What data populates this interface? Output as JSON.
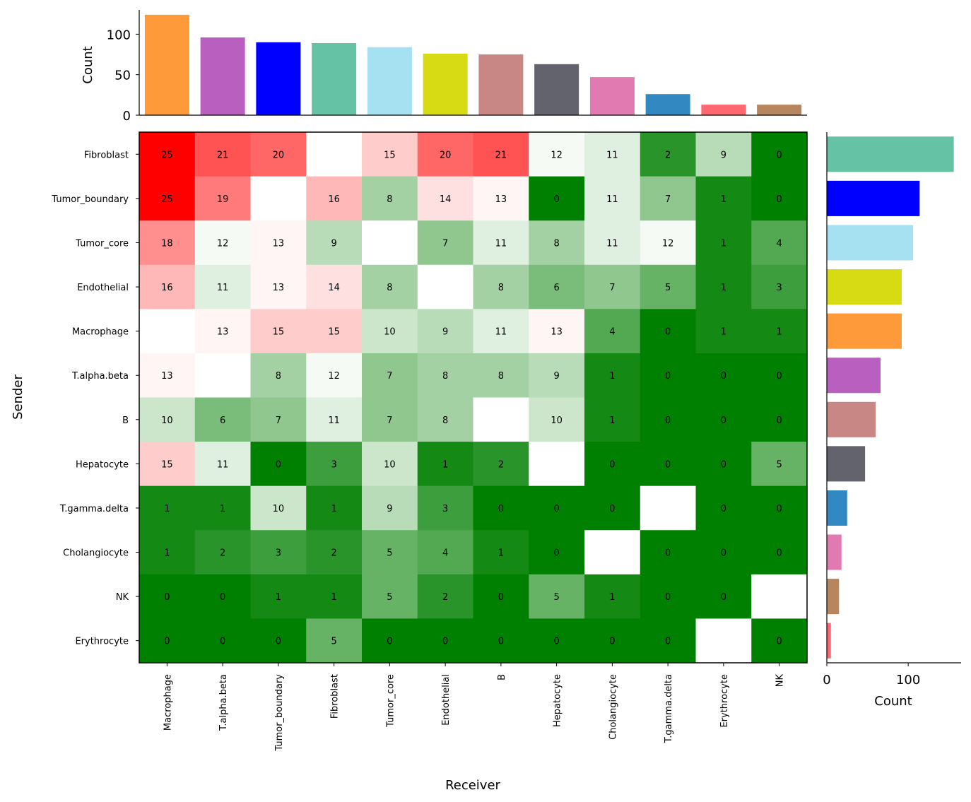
{
  "chart_data": [
    {
      "type": "heatmap",
      "xlabel": "Receiver",
      "ylabel": "Sender",
      "x_categories": [
        "Macrophage",
        "T.alpha.beta",
        "Tumor_boundary",
        "Fibroblast",
        "Tumor_core",
        "Endothelial",
        "B",
        "Hepatocyte",
        "Cholangiocyte",
        "T.gamma.delta",
        "Erythrocyte",
        "NK"
      ],
      "y_categories": [
        "Fibroblast",
        "Tumor_boundary",
        "Tumor_core",
        "Endothelial",
        "Macrophage",
        "T.alpha.beta",
        "B",
        "Hepatocyte",
        "T.gamma.delta",
        "Cholangiocyte",
        "NK",
        "Erythrocyte"
      ],
      "values": [
        [
          25,
          21,
          20,
          null,
          15,
          20,
          21,
          12,
          11,
          2,
          9,
          0
        ],
        [
          25,
          19,
          null,
          16,
          8,
          14,
          13,
          0,
          11,
          7,
          1,
          0
        ],
        [
          18,
          12,
          13,
          9,
          null,
          7,
          11,
          8,
          11,
          12,
          1,
          4
        ],
        [
          16,
          11,
          13,
          14,
          8,
          null,
          8,
          6,
          7,
          5,
          1,
          3
        ],
        [
          null,
          13,
          15,
          15,
          10,
          9,
          11,
          13,
          4,
          0,
          1,
          1
        ],
        [
          13,
          null,
          8,
          12,
          7,
          8,
          8,
          9,
          1,
          0,
          0,
          0
        ],
        [
          10,
          6,
          7,
          11,
          7,
          8,
          null,
          10,
          1,
          0,
          0,
          0
        ],
        [
          15,
          11,
          0,
          3,
          10,
          1,
          2,
          null,
          0,
          0,
          0,
          5
        ],
        [
          1,
          1,
          10,
          1,
          9,
          3,
          0,
          0,
          0,
          null,
          0,
          0
        ],
        [
          1,
          2,
          3,
          2,
          5,
          4,
          1,
          0,
          null,
          0,
          0,
          0
        ],
        [
          0,
          0,
          1,
          1,
          5,
          2,
          0,
          5,
          1,
          0,
          0,
          null
        ],
        [
          0,
          0,
          0,
          5,
          0,
          0,
          0,
          0,
          0,
          0,
          null,
          0
        ]
      ],
      "colormap": {
        "low": "#008000",
        "mid": "#ffffff",
        "high": "#ff0000",
        "range": [
          0,
          25
        ]
      }
    },
    {
      "type": "bar",
      "orientation": "vertical",
      "ylabel": "Count",
      "categories": [
        "Macrophage",
        "T.alpha.beta",
        "Tumor_boundary",
        "Fibroblast",
        "Tumor_core",
        "Endothelial",
        "B",
        "Hepatocyte",
        "Cholangiocyte",
        "T.gamma.delta",
        "Erythrocyte",
        "NK"
      ],
      "values": [
        124,
        96,
        90,
        89,
        84,
        76,
        75,
        63,
        47,
        26,
        13,
        13
      ],
      "yticks": [
        0,
        50,
        100
      ],
      "ylim": [
        0,
        130
      ]
    },
    {
      "type": "bar",
      "orientation": "horizontal",
      "xlabel": "Count",
      "categories": [
        "Fibroblast",
        "Tumor_boundary",
        "Tumor_core",
        "Endothelial",
        "Macrophage",
        "T.alpha.beta",
        "B",
        "Hepatocyte",
        "T.gamma.delta",
        "Cholangiocyte",
        "NK",
        "Erythrocyte"
      ],
      "values": [
        156,
        114,
        106,
        92,
        92,
        66,
        60,
        47,
        25,
        18,
        15,
        5
      ],
      "xticks": [
        0,
        100
      ],
      "xlim": [
        0,
        165
      ]
    }
  ],
  "celltype_colors": {
    "Fibroblast": "#66c2a5",
    "Tumor_boundary": "#0000ff",
    "Tumor_core": "#a6e1f2",
    "Endothelial": "#d6db13",
    "Macrophage": "#ff9a3a",
    "T.alpha.beta": "#b95fbf",
    "B": "#c88785",
    "Hepatocyte": "#63636d",
    "Cholangiocyte": "#e07ab0",
    "T.gamma.delta": "#3288c0",
    "Erythrocyte": "#ff6670",
    "NK": "#b8865e"
  }
}
